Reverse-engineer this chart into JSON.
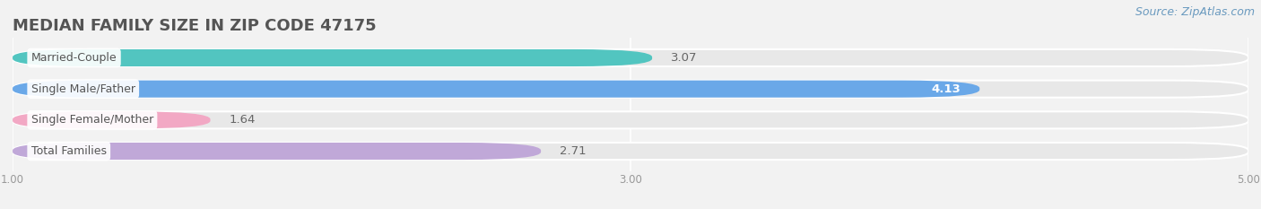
{
  "title": "MEDIAN FAMILY SIZE IN ZIP CODE 47175",
  "source": "Source: ZipAtlas.com",
  "categories": [
    "Married-Couple",
    "Single Male/Father",
    "Single Female/Mother",
    "Total Families"
  ],
  "values": [
    3.07,
    4.13,
    1.64,
    2.71
  ],
  "bar_colors": [
    "#52c5c0",
    "#6aa8e8",
    "#f2a8c4",
    "#c0a8d8"
  ],
  "bar_bg_color": "#e8e8e8",
  "xlim": [
    1.0,
    5.0
  ],
  "xticks": [
    1.0,
    3.0,
    5.0
  ],
  "value_color_inside": "#ffffff",
  "value_color_outside": "#666666",
  "inside_threshold": 4.0,
  "title_color": "#555555",
  "title_fontsize": 13,
  "label_fontsize": 9,
  "value_fontsize": 9.5,
  "source_fontsize": 9,
  "source_color": "#6a9abf",
  "bg_color": "#f2f2f2",
  "bar_height": 0.55,
  "label_bg_color": "#ffffff",
  "label_text_color": "#555555"
}
